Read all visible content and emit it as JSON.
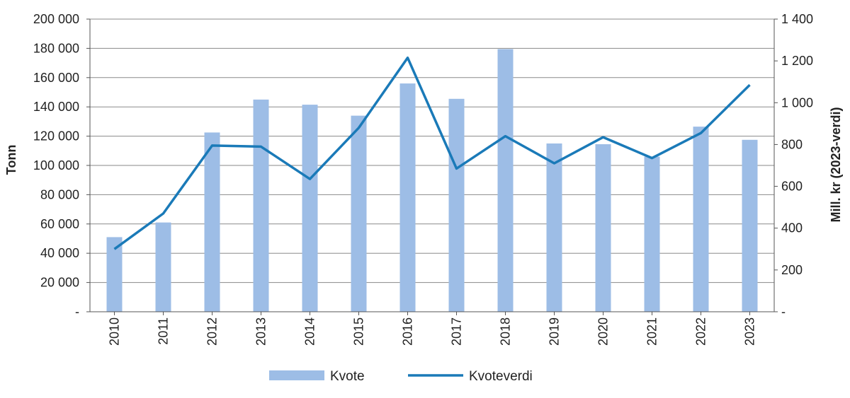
{
  "chart_data": {
    "type": "bar+line",
    "categories": [
      "2010",
      "2011",
      "2012",
      "2013",
      "2014",
      "2015",
      "2016",
      "2017",
      "2018",
      "2019",
      "2020",
      "2021",
      "2022",
      "2023"
    ],
    "series": [
      {
        "name": "Kvote",
        "type": "bar",
        "axis": "left",
        "color": "#9dbde6",
        "values": [
          51000,
          61000,
          122500,
          145000,
          141500,
          134000,
          156000,
          145500,
          179500,
          115000,
          114500,
          106000,
          126500,
          117500
        ]
      },
      {
        "name": "Kvoteverdi",
        "type": "line",
        "axis": "right",
        "color": "#1a7ab8",
        "values": [
          300,
          470,
          795,
          790,
          635,
          880,
          1215,
          685,
          840,
          710,
          835,
          735,
          855,
          1085
        ]
      }
    ],
    "y_left": {
      "label": "Tonn",
      "lim": [
        0,
        200000
      ],
      "ticks": [
        0,
        20000,
        40000,
        60000,
        80000,
        100000,
        120000,
        140000,
        160000,
        180000,
        200000
      ],
      "tick_labels": [
        "-",
        "20 000",
        "40 000",
        "60 000",
        "80 000",
        "100 000",
        "120 000",
        "140 000",
        "160 000",
        "180 000",
        "200 000"
      ]
    },
    "y_right": {
      "label": "Mill. kr (2023-verdi)",
      "lim": [
        0,
        1400
      ],
      "ticks": [
        0,
        200,
        400,
        600,
        800,
        1000,
        1200,
        1400
      ],
      "tick_labels": [
        "-",
        "200",
        "400",
        "600",
        "800",
        "1 000",
        "1 200",
        "1 400"
      ]
    },
    "grid": true,
    "legend": {
      "position": "bottom-center",
      "items": [
        {
          "label": "Kvote",
          "kind": "bar",
          "color": "#9dbde6"
        },
        {
          "label": "Kvoteverdi",
          "kind": "line",
          "color": "#1a7ab8"
        }
      ]
    }
  }
}
